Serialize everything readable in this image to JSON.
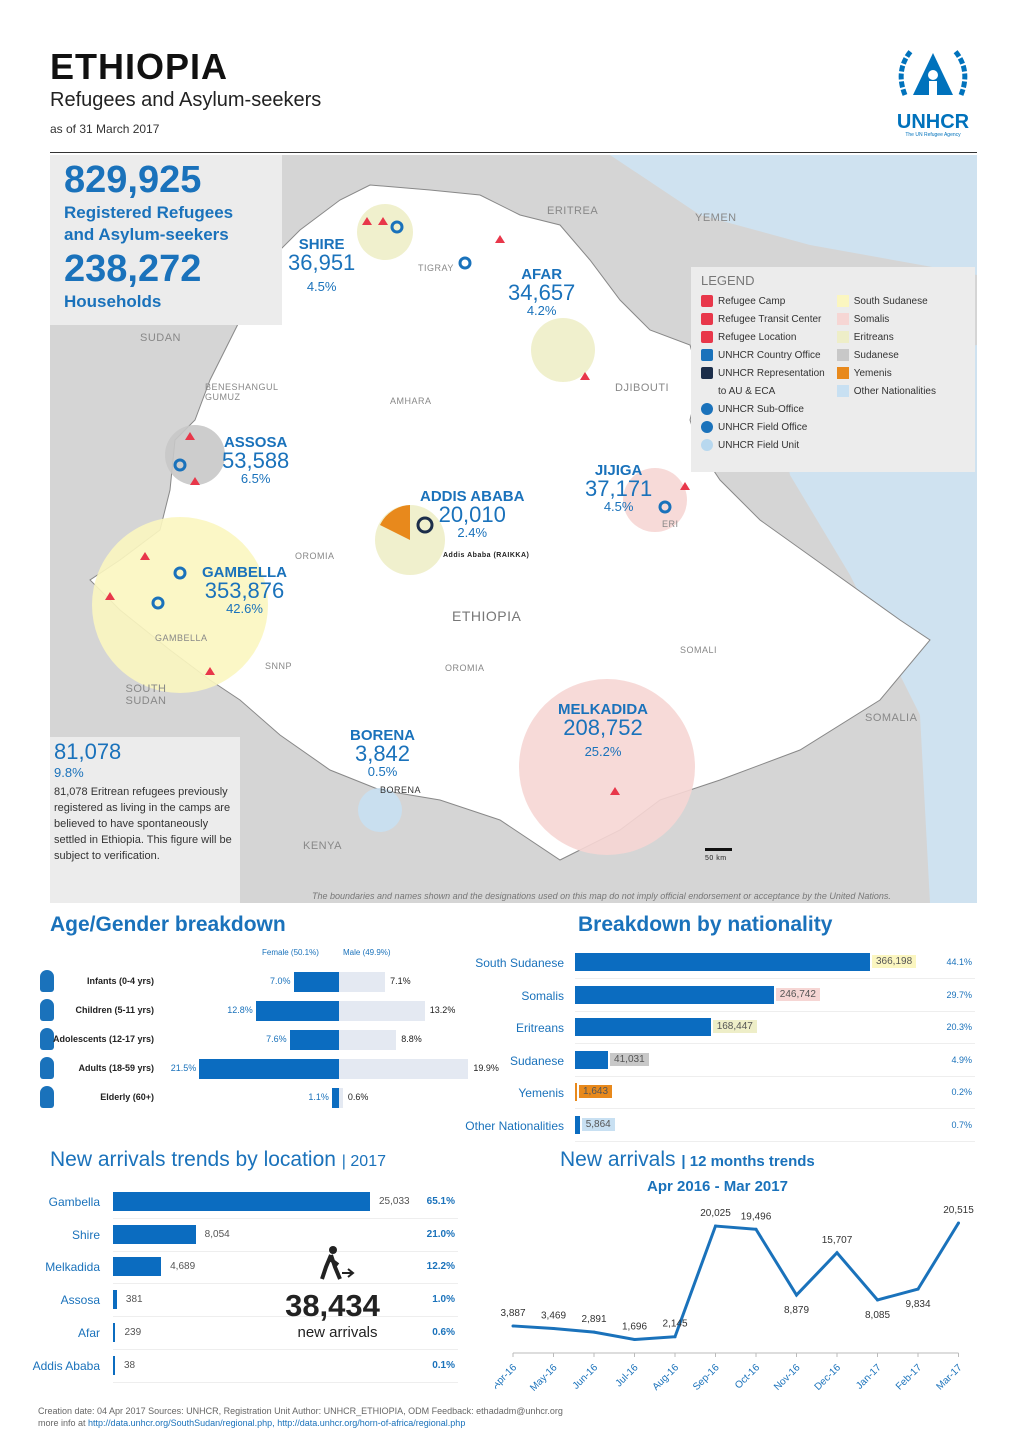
{
  "header": {
    "title": "ETHIOPIA",
    "subtitle": "Refugees and Asylum-seekers",
    "date": "as of 31 March 2017",
    "logo": "UNHCR",
    "logo_sub": "The UN Refugee Agency"
  },
  "kpi": {
    "refugees": "829,925",
    "refugees_label1": "Registered Refugees",
    "refugees_label2": "and Asylum-seekers",
    "households": "238,272",
    "households_label": "Households"
  },
  "map": {
    "countries": [
      "ERITREA",
      "YEMEN",
      "SUDAN",
      "DJIBOUTI",
      "SOUTH SUDAN",
      "KENYA",
      "SOMALIA",
      "ETHIOPIA"
    ],
    "regions": [
      "TIGRAY",
      "AFAR",
      "AMHARA",
      "BENESHANGUL GUMUZ",
      "OROMIA",
      "GAMBELLA",
      "SNNP",
      "OROMIA",
      "SOMALI",
      "BORENA",
      "ERI"
    ],
    "locations": [
      {
        "name": "SHIRE",
        "value": "36,951",
        "pct": "4.5%"
      },
      {
        "name": "AFAR",
        "value": "34,657",
        "pct": "4.2%"
      },
      {
        "name": "ASSOSA",
        "value": "53,588",
        "pct": "6.5%"
      },
      {
        "name": "ADDIS ABABA",
        "value": "20,010",
        "pct": "2.4%"
      },
      {
        "name": "JIJIGA",
        "value": "37,171",
        "pct": "4.5%"
      },
      {
        "name": "GAMBELLA",
        "value": "353,876",
        "pct": "42.6%"
      },
      {
        "name": "BORENA",
        "value": "3,842",
        "pct": "0.5%"
      },
      {
        "name": "MELKADIDA",
        "value": "208,752",
        "pct": "25.2%"
      }
    ],
    "addis_office": "Addis Ababa (RAIKKA)",
    "scale": "50 km",
    "disclaimer": "The boundaries and names shown and the designations used on this map do not imply official endorsement or acceptance by the United Nations.",
    "note": {
      "value": "81,078",
      "pct": "9.8%",
      "text": "81,078 Eritrean refugees previously registered as living in the camps are believed to have spontaneously settled in Ethiopia. This figure will be subject to verification."
    }
  },
  "legend": {
    "title": "LEGEND",
    "symbols": [
      {
        "label": "Refugee Camp",
        "icon": "camp-icon",
        "color": "#e8374a"
      },
      {
        "label": "Refugee Transit Center",
        "icon": "transit-center-icon",
        "color": "#e8374a"
      },
      {
        "label": "Refugee Location",
        "icon": "location-pin-icon",
        "color": "#e8374a"
      },
      {
        "label": "UNHCR Country Office",
        "icon": "country-office-icon",
        "color": "#1a72bb"
      },
      {
        "label": "UNHCR Representation",
        "icon": "representation-icon",
        "color": "#1c2e4a"
      },
      {
        "label": "to AU & ECA",
        "icon": "",
        "color": ""
      },
      {
        "label": "UNHCR Sub-Office",
        "icon": "sub-office-icon",
        "color": "#1a72bb"
      },
      {
        "label": "UNHCR Field Office",
        "icon": "field-office-icon",
        "color": "#1a72bb"
      },
      {
        "label": "UNHCR Field Unit",
        "icon": "field-unit-icon",
        "color": "#b8d8ef"
      }
    ],
    "nationalities": [
      {
        "label": "South Sudanese",
        "color": "#fbf6c0"
      },
      {
        "label": "Somalis",
        "color": "#f6d6d4"
      },
      {
        "label": "Eritreans",
        "color": "#eeeec8"
      },
      {
        "label": "Sudanese",
        "color": "#c8c8c8"
      },
      {
        "label": "Yemenis",
        "color": "#e8891c"
      },
      {
        "label": "Other Nationalities",
        "color": "#c8e0f2"
      }
    ]
  },
  "age_gender": {
    "title": "Age/Gender breakdown",
    "female_label": "Female (50.1%)",
    "male_label": "Male (49.9%)",
    "rows": [
      {
        "label": "Infants (0-4 yrs)",
        "icon": "infant-icon",
        "female": 7.0,
        "male": 7.1,
        "female_text": "7.0%",
        "male_text": "7.1%"
      },
      {
        "label": "Children (5-11 yrs)",
        "icon": "child-icon",
        "female": 12.8,
        "male": 13.2,
        "female_text": "12.8%",
        "male_text": "13.2%"
      },
      {
        "label": "Adolescents (12-17 yrs)",
        "icon": "adolescent-icon",
        "female": 7.6,
        "male": 8.8,
        "female_text": "7.6%",
        "male_text": "8.8%"
      },
      {
        "label": "Adults (18-59 yrs)",
        "icon": "adult-icon",
        "female": 21.5,
        "male": 19.9,
        "female_text": "21.5%",
        "male_text": "19.9%"
      },
      {
        "label": "Elderly (60+)",
        "icon": "elderly-icon",
        "female": 1.1,
        "male": 0.6,
        "female_text": "1.1%",
        "male_text": "0.6%"
      }
    ]
  },
  "nationality": {
    "title": "Breakdown by nationality",
    "rows": [
      {
        "label": "South Sudanese",
        "value": 366198,
        "value_text": "366,198",
        "pct": "44.1%",
        "color": "#fbf6c0"
      },
      {
        "label": "Somalis",
        "value": 246742,
        "value_text": "246,742",
        "pct": "29.7%",
        "color": "#f6d6d4"
      },
      {
        "label": "Eritreans",
        "value": 168447,
        "value_text": "168,447",
        "pct": "20.3%",
        "color": "#eeeec8"
      },
      {
        "label": "Sudanese",
        "value": 41031,
        "value_text": "41,031",
        "pct": "4.9%",
        "color": "#c8c8c8"
      },
      {
        "label": "Yemenis",
        "value": 1643,
        "value_text": "1,643",
        "pct": "0.2%",
        "color": "#e8891c"
      },
      {
        "label": "Other Nationalities",
        "value": 5864,
        "value_text": "5,864",
        "pct": "0.7%",
        "color": "#c8e0f2"
      }
    ]
  },
  "arrivals_location": {
    "title": "New arrivals trends by location",
    "year": "| 2017",
    "total": "38,434",
    "total_label": "new arrivals",
    "icon": "walking-person-icon",
    "rows": [
      {
        "label": "Gambella",
        "value": 25033,
        "value_text": "25,033",
        "pct": "65.1%"
      },
      {
        "label": "Shire",
        "value": 8054,
        "value_text": "8,054",
        "pct": "21.0%"
      },
      {
        "label": "Melkadida",
        "value": 4689,
        "value_text": "4,689",
        "pct": "12.2%"
      },
      {
        "label": "Assosa",
        "value": 381,
        "value_text": "381",
        "pct": "1.0%"
      },
      {
        "label": "Afar",
        "value": 239,
        "value_text": "239",
        "pct": "0.6%"
      },
      {
        "label": "Addis Ababa",
        "value": 38,
        "value_text": "38",
        "pct": "0.1%"
      }
    ]
  },
  "chart_data": {
    "type": "line",
    "title": "New arrivals",
    "title_suffix": "| 12 months trends",
    "subtitle": "Apr 2016 - Mar 2017",
    "categories": [
      "Apr-16",
      "May-16",
      "Jun-16",
      "Jul-16",
      "Aug-16",
      "Sep-16",
      "Oct-16",
      "Nov-16",
      "Dec-16",
      "Jan-17",
      "Feb-17",
      "Mar-17"
    ],
    "values": [
      3887,
      3469,
      2891,
      1696,
      2145,
      20025,
      19496,
      8879,
      15707,
      8085,
      9834,
      20515
    ],
    "labels": [
      "3,887",
      "3,469",
      "2,891",
      "1,696",
      "2,145",
      "20,025",
      "19,496",
      "8,879",
      "15,707",
      "8,085",
      "9,834",
      "20,515"
    ],
    "ylim": [
      0,
      21000
    ],
    "grid": false,
    "color": "#1a72bb"
  },
  "footer": {
    "line1": "Creation date: 04 Apr 2017    Sources: UNHCR, Registration Unit   Author: UNHCR_ETHIOPIA, ODM    Feedback: ethadadm@unhcr.org",
    "more": "more info at",
    "link1": "http://data.unhcr.org/SouthSudan/regional.php,",
    "link2": "http://data.unhcr.org/horn-of-africa/regional.php"
  }
}
